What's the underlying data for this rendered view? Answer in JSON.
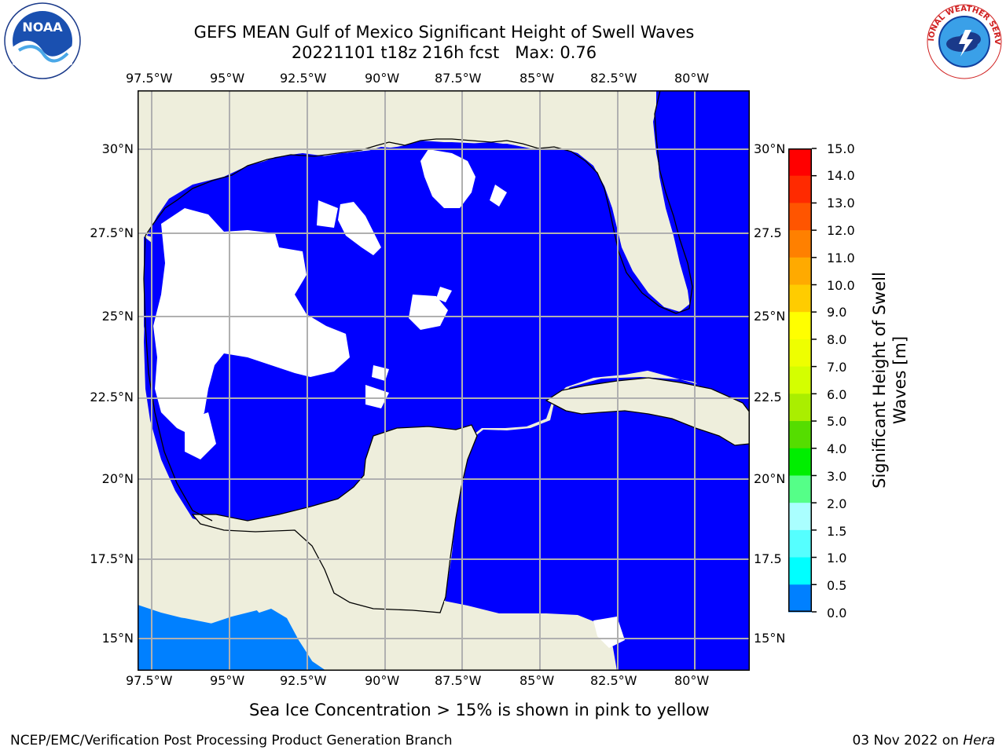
{
  "title": {
    "line1": "GEFS MEAN Gulf of Mexico Significant Height of Swell Waves",
    "line2": "20221101 t18z 216h fcst   Max: 0.76"
  },
  "map": {
    "lon_labels": [
      "97.5°W",
      "95°W",
      "92.5°W",
      "90°W",
      "87.5°W",
      "85°W",
      "82.5°W",
      "80°W"
    ],
    "lat_labels_left": [
      "30°N",
      "27.5°N",
      "25°N",
      "22.5°N",
      "20°N",
      "17.5°N",
      "15°N"
    ],
    "lat_labels_right": [
      "30°N",
      "27.5",
      "25°N",
      "22.5",
      "20°N",
      "17.5",
      "15°N"
    ],
    "colors": {
      "land": "#eeeedc",
      "ocean": "#0000ff",
      "pacific": "#0080ff",
      "grid": "#b0b0b0"
    }
  },
  "colorbar": {
    "label_line1": "Significant Height of Swell",
    "label_line2": "Waves [m]",
    "ticks": [
      "15.0",
      "14.0",
      "13.0",
      "12.0",
      "11.0",
      "10.0",
      "9.0",
      "8.0",
      "7.0",
      "6.0",
      "5.0",
      "4.0",
      "3.0",
      "2.0",
      "1.5",
      "1.0",
      "0.5",
      "0.0"
    ],
    "colors_top_down": [
      "#ff0000",
      "#ff2a00",
      "#ff5500",
      "#ff8000",
      "#ffaa00",
      "#ffcc00",
      "#ffff00",
      "#eeff00",
      "#d4ff00",
      "#aaee00",
      "#55dd00",
      "#00ee00",
      "#55ff88",
      "#aaffff",
      "#55ffff",
      "#00ffff",
      "#0080ff",
      "#0000ff"
    ]
  },
  "note": "Sea Ice Concentration > 15% is shown in pink to yellow",
  "footer": {
    "left": "NCEP/EMC/Verification Post Processing Product Generation Branch",
    "right_prefix": "03 Nov 2022 on ",
    "right_host": "Hera"
  },
  "logos": {
    "noaa_text": "NOAA",
    "nws_text": "NATIONAL WEATHER SERVICE"
  }
}
